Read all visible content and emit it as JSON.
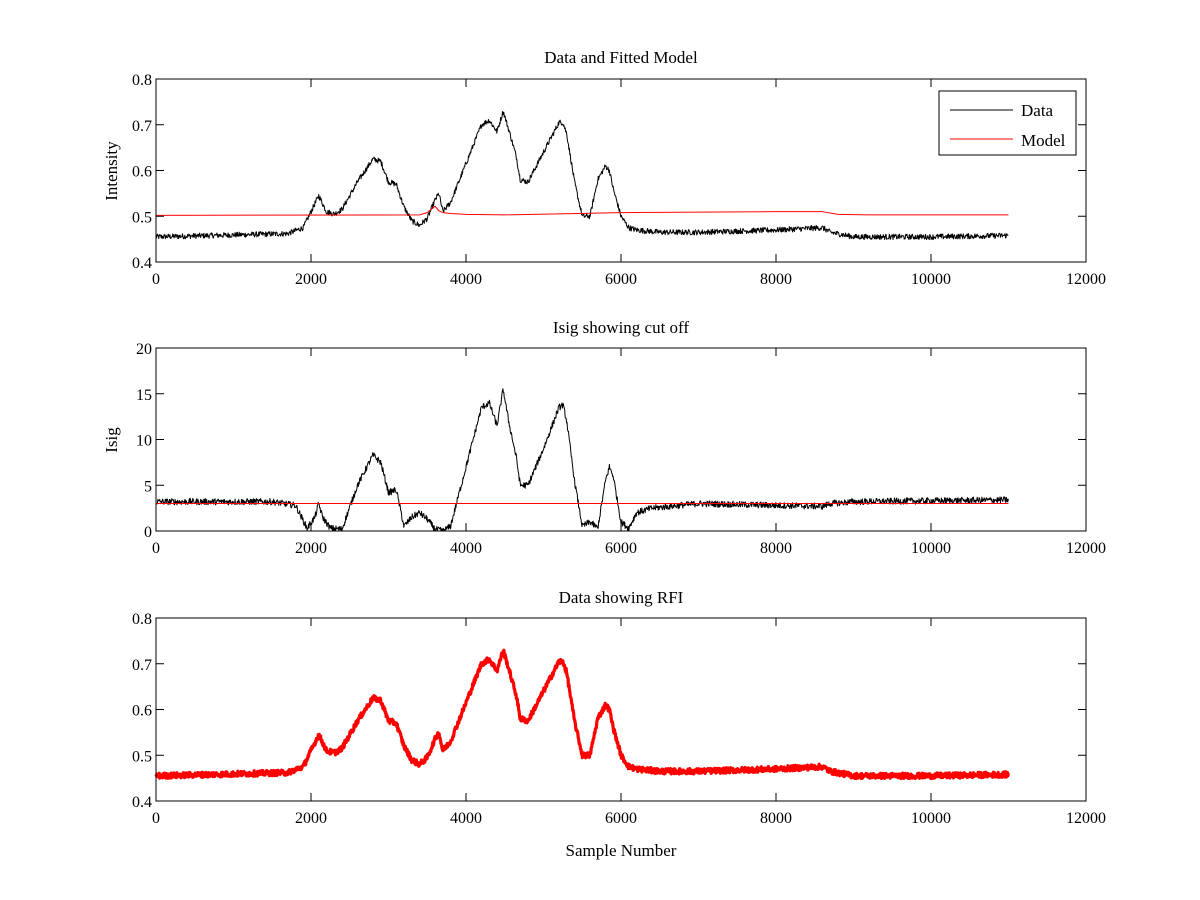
{
  "chart_data": [
    {
      "type": "line",
      "title": "Data and Fitted Model",
      "xlabel": "",
      "ylabel": "Intensity",
      "xlim": [
        0,
        12000
      ],
      "ylim": [
        0.4,
        0.8
      ],
      "xticks": [
        "0",
        "2000",
        "4000",
        "6000",
        "8000",
        "10000",
        "12000"
      ],
      "yticks": [
        "0.4",
        "0.5",
        "0.6",
        "0.7",
        "0.8"
      ],
      "grid": false,
      "legend": "top-right",
      "series": [
        {
          "name": "Data",
          "color": "#000000",
          "noise": 0.006,
          "x": [
            0,
            1700,
            1900,
            2000,
            2100,
            2200,
            2300,
            2400,
            2600,
            2800,
            2900,
            3000,
            3100,
            3200,
            3300,
            3400,
            3500,
            3600,
            3650,
            3700,
            3800,
            4000,
            4200,
            4300,
            4400,
            4480,
            4550,
            4650,
            4700,
            4800,
            5000,
            5200,
            5250,
            5300,
            5400,
            5500,
            5600,
            5700,
            5800,
            5850,
            5900,
            6000,
            6100,
            6200,
            6500,
            7000,
            8000,
            8600,
            8700,
            9000,
            10000,
            11000
          ],
          "y": [
            0.455,
            0.462,
            0.475,
            0.51,
            0.545,
            0.51,
            0.505,
            0.515,
            0.575,
            0.625,
            0.62,
            0.575,
            0.57,
            0.52,
            0.49,
            0.48,
            0.495,
            0.535,
            0.55,
            0.51,
            0.53,
            0.615,
            0.7,
            0.71,
            0.685,
            0.73,
            0.69,
            0.63,
            0.58,
            0.575,
            0.64,
            0.705,
            0.705,
            0.68,
            0.575,
            0.5,
            0.5,
            0.58,
            0.61,
            0.6,
            0.56,
            0.5,
            0.475,
            0.47,
            0.465,
            0.465,
            0.47,
            0.475,
            0.465,
            0.455,
            0.455,
            0.458
          ]
        },
        {
          "name": "Model",
          "color": "#ff0000",
          "noise": 0,
          "x": [
            0,
            3400,
            3500,
            3600,
            3650,
            3700,
            3800,
            4000,
            4500,
            6000,
            8000,
            8600,
            8800,
            9200,
            11000
          ],
          "y": [
            0.502,
            0.503,
            0.508,
            0.522,
            0.512,
            0.508,
            0.506,
            0.504,
            0.503,
            0.508,
            0.51,
            0.51,
            0.504,
            0.503,
            0.503
          ]
        }
      ]
    },
    {
      "type": "line",
      "title": "Isig showing cut off",
      "xlabel": "",
      "ylabel": "Isig",
      "xlim": [
        0,
        12000
      ],
      "ylim": [
        0,
        20
      ],
      "xticks": [
        "0",
        "2000",
        "4000",
        "6000",
        "8000",
        "10000",
        "12000"
      ],
      "yticks": [
        "0",
        "5",
        "10",
        "15",
        "20"
      ],
      "grid": false,
      "series": [
        {
          "color": "#000000",
          "noise": 0.35,
          "clip_min": 0,
          "x": [
            0,
            1500,
            1800,
            1950,
            2050,
            2100,
            2150,
            2250,
            2400,
            2600,
            2800,
            2900,
            3000,
            3100,
            3200,
            3300,
            3400,
            3500,
            3600,
            3700,
            3800,
            4000,
            4200,
            4300,
            4400,
            4480,
            4550,
            4650,
            4700,
            4800,
            5000,
            5200,
            5250,
            5300,
            5400,
            5500,
            5600,
            5700,
            5800,
            5850,
            5900,
            6000,
            6100,
            6200,
            6400,
            7000,
            8000,
            8600,
            8700,
            9000,
            10000,
            11000
          ],
          "y": [
            3.2,
            3.2,
            2.8,
            0.3,
            1.5,
            3.0,
            1.5,
            0.3,
            0.2,
            5.0,
            8.3,
            7.5,
            4.2,
            4.5,
            0.5,
            1.5,
            2.0,
            1.3,
            0.2,
            0.0,
            0.5,
            7.0,
            13.5,
            14.0,
            11.5,
            15.5,
            12.0,
            8.0,
            5.0,
            5.0,
            9.0,
            13.5,
            13.8,
            12.0,
            5.5,
            0.5,
            1.0,
            0.3,
            5.5,
            7.0,
            6.0,
            1.0,
            0.3,
            2.0,
            2.5,
            3.0,
            2.8,
            2.7,
            3.0,
            3.2,
            3.3,
            3.4
          ]
        },
        {
          "color": "#ff0000",
          "noise": 0,
          "x": [
            0,
            11000
          ],
          "y": [
            3.0,
            3.0
          ]
        }
      ]
    },
    {
      "type": "line",
      "title": "Data showing RFI",
      "xlabel": "Sample Number",
      "ylabel": "",
      "xlim": [
        0,
        12000
      ],
      "ylim": [
        0.4,
        0.8
      ],
      "xticks": [
        "0",
        "2000",
        "4000",
        "6000",
        "8000",
        "10000",
        "12000"
      ],
      "yticks": [
        "0.4",
        "0.5",
        "0.6",
        "0.7",
        "0.8"
      ],
      "grid": false,
      "series": [
        {
          "color": "#ff0000",
          "noise": 0.006,
          "bold": true,
          "x": [
            0,
            1700,
            1900,
            2000,
            2100,
            2200,
            2300,
            2400,
            2600,
            2800,
            2900,
            3000,
            3100,
            3200,
            3300,
            3400,
            3500,
            3600,
            3650,
            3700,
            3800,
            4000,
            4200,
            4300,
            4400,
            4480,
            4550,
            4650,
            4700,
            4800,
            5000,
            5200,
            5250,
            5300,
            5400,
            5500,
            5600,
            5700,
            5800,
            5850,
            5900,
            6000,
            6100,
            6200,
            6500,
            7000,
            8000,
            8600,
            8700,
            9000,
            10000,
            11000
          ],
          "y": [
            0.455,
            0.462,
            0.475,
            0.51,
            0.545,
            0.51,
            0.505,
            0.515,
            0.575,
            0.625,
            0.62,
            0.575,
            0.57,
            0.52,
            0.49,
            0.48,
            0.495,
            0.535,
            0.55,
            0.51,
            0.53,
            0.615,
            0.7,
            0.71,
            0.685,
            0.73,
            0.69,
            0.63,
            0.58,
            0.575,
            0.64,
            0.705,
            0.705,
            0.68,
            0.575,
            0.5,
            0.5,
            0.58,
            0.61,
            0.6,
            0.56,
            0.5,
            0.475,
            0.47,
            0.465,
            0.465,
            0.47,
            0.475,
            0.465,
            0.455,
            0.455,
            0.458
          ]
        }
      ]
    }
  ]
}
